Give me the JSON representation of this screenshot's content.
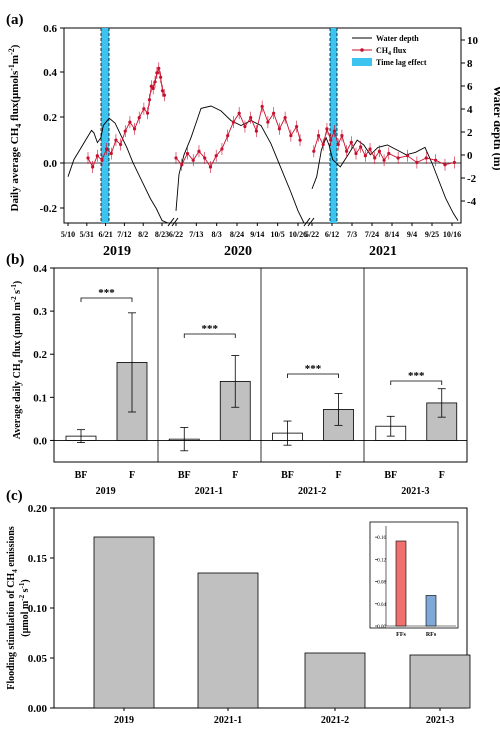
{
  "chart_data": [
    {
      "panel_label": "(a)",
      "type": "line",
      "ylabel_left": "Daily average CH",
      "ylabel_left_sub": "4",
      "ylabel_left_tail": " flux(μmols",
      "ylabel_left_unit2": "m",
      "ylabel_right": "Water depth (m)",
      "ylim_left": [
        -0.27,
        0.6
      ],
      "ylim_right": [
        -5,
        11
      ],
      "yticks_left": [
        "0.6",
        "0.4",
        "0.2",
        "0.0",
        "-0.2"
      ],
      "yticks_right": [
        "10",
        "8",
        "6",
        "4",
        "2",
        "0",
        "-2",
        "-4"
      ],
      "year_labels": [
        "2019",
        "2020",
        "2021"
      ],
      "x_ticks_2019": [
        "5/10",
        "5/31",
        "6/21",
        "7/12",
        "8/2",
        "8/23"
      ],
      "x_ticks_2020": [
        "6/22",
        "7/13",
        "8/3",
        "8/24",
        "9/14",
        "10/5",
        "10/26"
      ],
      "x_ticks_2021": [
        "5/22",
        "6/12",
        "7/3",
        "7/24",
        "8/14",
        "9/4",
        "9/25",
        "10/16"
      ],
      "legend": [
        "Water depth",
        "CH",
        "4",
        " flux",
        "Time lag effect"
      ],
      "colors": {
        "ch4": "#c8102e",
        "water": "#000000",
        "lag": "#3cc3ef"
      },
      "water_depth_2019": [
        [
          0,
          -1.2
        ],
        [
          5,
          0.2
        ],
        [
          10,
          1.0
        ],
        [
          15,
          1.8
        ],
        [
          20,
          2.6
        ],
        [
          22,
          2.4
        ],
        [
          25,
          1.6
        ],
        [
          28,
          2.0
        ],
        [
          30,
          3.0
        ],
        [
          35,
          3.6
        ],
        [
          40,
          3.2
        ],
        [
          45,
          2.2
        ],
        [
          50,
          1.2
        ],
        [
          55,
          0.0
        ],
        [
          60,
          -1.0
        ],
        [
          65,
          -2.0
        ],
        [
          70,
          -3.0
        ],
        [
          75,
          -3.8
        ],
        [
          80,
          -4.8
        ],
        [
          85,
          -5.0
        ]
      ],
      "water_depth_2020": [
        [
          0,
          -4.0
        ],
        [
          3,
          -1.0
        ],
        [
          8,
          0.6
        ],
        [
          15,
          2.0
        ],
        [
          20,
          3.2
        ],
        [
          25,
          4.4
        ],
        [
          35,
          4.6
        ],
        [
          45,
          4.2
        ],
        [
          55,
          3.4
        ],
        [
          65,
          3.0
        ],
        [
          75,
          3.4
        ],
        [
          85,
          3.0
        ],
        [
          95,
          1.5
        ],
        [
          105,
          -0.5
        ],
        [
          115,
          -2.5
        ],
        [
          122,
          -4.0
        ],
        [
          128,
          -5.0
        ]
      ],
      "water_depth_2021": [
        [
          0,
          -2.2
        ],
        [
          5,
          -1.2
        ],
        [
          10,
          1.0
        ],
        [
          15,
          2.0
        ],
        [
          18,
          1.4
        ],
        [
          22,
          0.2
        ],
        [
          30,
          -0.4
        ],
        [
          40,
          0.8
        ],
        [
          48,
          1.8
        ],
        [
          55,
          1.4
        ],
        [
          62,
          0.6
        ],
        [
          70,
          1.2
        ],
        [
          80,
          1.4
        ],
        [
          90,
          1.0
        ],
        [
          100,
          0.6
        ],
        [
          110,
          0.8
        ],
        [
          120,
          1.2
        ],
        [
          128,
          -0.2
        ],
        [
          135,
          -1.6
        ],
        [
          142,
          -3.0
        ],
        [
          150,
          -4.2
        ],
        [
          155,
          -4.8
        ]
      ],
      "ch4_2019": [
        [
          0,
          0.02
        ],
        [
          5,
          -0.02
        ],
        [
          10,
          0.03
        ],
        [
          15,
          0.01
        ],
        [
          20,
          0.06
        ],
        [
          25,
          0.04
        ],
        [
          30,
          0.1
        ],
        [
          35,
          0.08
        ],
        [
          40,
          0.14
        ],
        [
          45,
          0.18
        ],
        [
          50,
          0.15
        ],
        [
          55,
          0.2
        ],
        [
          60,
          0.24
        ],
        [
          64,
          0.22
        ],
        [
          66,
          0.28
        ],
        [
          68,
          0.34
        ],
        [
          70,
          0.33
        ],
        [
          72,
          0.36
        ],
        [
          74,
          0.4
        ],
        [
          76,
          0.42
        ],
        [
          78,
          0.38
        ],
        [
          80,
          0.32
        ],
        [
          82,
          0.3
        ]
      ],
      "ch4_2020": [
        [
          0,
          0.02
        ],
        [
          5,
          -0.01
        ],
        [
          10,
          0.04
        ],
        [
          15,
          0.01
        ],
        [
          20,
          0.05
        ],
        [
          25,
          0.02
        ],
        [
          30,
          -0.02
        ],
        [
          35,
          0.03
        ],
        [
          40,
          0.06
        ],
        [
          45,
          0.12
        ],
        [
          50,
          0.18
        ],
        [
          55,
          0.22
        ],
        [
          60,
          0.16
        ],
        [
          65,
          0.2
        ],
        [
          70,
          0.14
        ],
        [
          75,
          0.25
        ],
        [
          80,
          0.18
        ],
        [
          85,
          0.22
        ],
        [
          90,
          0.15
        ],
        [
          95,
          0.2
        ],
        [
          100,
          0.12
        ],
        [
          105,
          0.16
        ],
        [
          108,
          0.1
        ]
      ],
      "ch4_2021": [
        [
          0,
          0.05
        ],
        [
          5,
          0.12
        ],
        [
          10,
          0.08
        ],
        [
          14,
          0.15
        ],
        [
          18,
          0.1
        ],
        [
          22,
          0.14
        ],
        [
          26,
          0.08
        ],
        [
          30,
          0.12
        ],
        [
          35,
          0.05
        ],
        [
          40,
          0.09
        ],
        [
          45,
          0.04
        ],
        [
          50,
          0.07
        ],
        [
          55,
          0.03
        ],
        [
          60,
          0.06
        ],
        [
          65,
          0.02
        ],
        [
          70,
          0.05
        ],
        [
          75,
          0.01
        ],
        [
          80,
          0.04
        ],
        [
          90,
          0.02
        ],
        [
          100,
          0.03
        ],
        [
          110,
          0.0
        ],
        [
          120,
          0.02
        ],
        [
          130,
          0.01
        ],
        [
          140,
          -0.01
        ],
        [
          150,
          0.0
        ]
      ]
    },
    {
      "panel_label": "(b)",
      "type": "bar",
      "ylabel": "Average daily CH",
      "ylabel_sub": "4",
      "ylabel_tail": " flux (μmol m",
      "ylim": [
        -0.05,
        0.4
      ],
      "yticks": [
        "0.4",
        "0.3",
        "0.2",
        "0.1",
        "0.0"
      ],
      "groups": [
        {
          "name": "2019",
          "bars": [
            {
              "label": "BF",
              "value": 0.01,
              "err": 0.015
            },
            {
              "label": "F",
              "value": 0.181,
              "err": 0.115
            }
          ]
        },
        {
          "name": "2021-1",
          "bars": [
            {
              "label": "BF",
              "value": 0.003,
              "err": 0.027
            },
            {
              "label": "F",
              "value": 0.137,
              "err": 0.06
            }
          ]
        },
        {
          "name": "2021-2",
          "bars": [
            {
              "label": "BF",
              "value": 0.017,
              "err": 0.028
            },
            {
              "label": "F",
              "value": 0.072,
              "err": 0.037
            }
          ]
        },
        {
          "name": "2021-3",
          "bars": [
            {
              "label": "BF",
              "value": 0.033,
              "err": 0.023
            },
            {
              "label": "F",
              "value": 0.087,
              "err": 0.033
            }
          ]
        }
      ],
      "significance": "***",
      "colors": {
        "BF": "#ffffff",
        "F": "#c0c0c0"
      }
    },
    {
      "panel_label": "(c)",
      "type": "bar",
      "ylabel": "Flooding stimulation of CH",
      "ylabel_sub": "4",
      "ylabel_tail": " emissions",
      "ylabel_line2": "(μmol m",
      "categories": [
        "2019",
        "2021-1",
        "2021-2",
        "2021-3"
      ],
      "values": [
        0.171,
        0.135,
        0.055,
        0.053
      ],
      "ylim": [
        0,
        0.2
      ],
      "yticks": [
        "0.20",
        "0.15",
        "0.10",
        "0.05",
        "0.00"
      ],
      "color": "#c0c0c0",
      "inset": {
        "type": "bar",
        "categories": [
          "FFs",
          "RFs"
        ],
        "values": [
          0.153,
          0.055
        ],
        "ylim": [
          0,
          0.18
        ],
        "yticks": [
          "0.16",
          "0.12",
          "0.08",
          "0.04",
          "0.00"
        ],
        "colors": [
          "#f07070",
          "#7fa8d8"
        ]
      }
    }
  ]
}
